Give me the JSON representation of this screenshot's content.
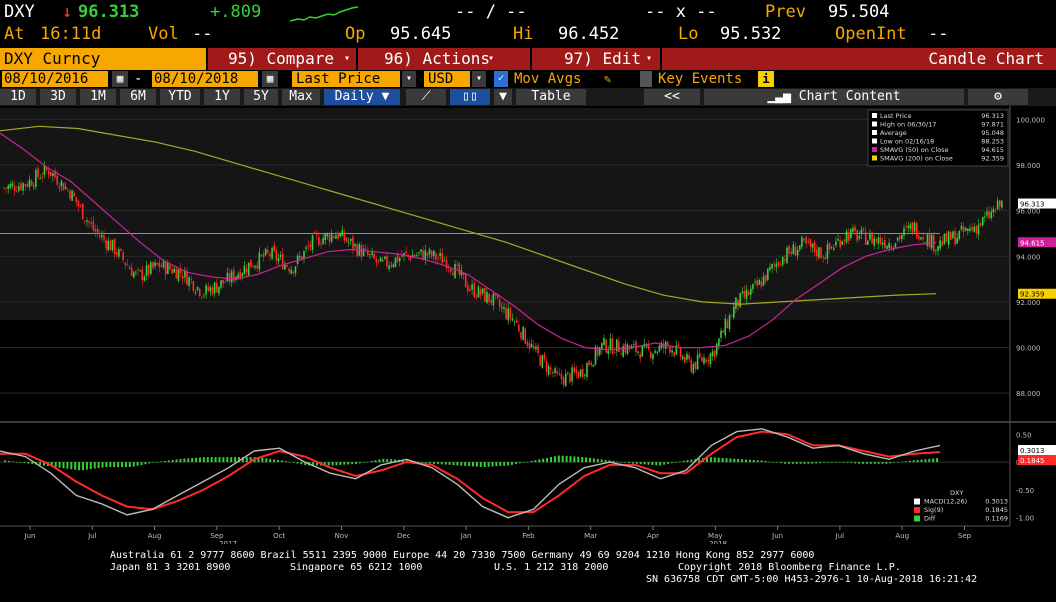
{
  "header": {
    "ticker": "DXY",
    "arrow": "↓",
    "last": "96.313",
    "change": "+.809",
    "dash1": "-- / --",
    "dash2": "-- x --",
    "prev_label": "Prev",
    "prev": "95.504",
    "at_label": "At",
    "time": "16:11d",
    "vol_label": "Vol",
    "vol": "--",
    "op_label": "Op",
    "op": "95.645",
    "hi_label": "Hi",
    "hi": "96.452",
    "lo_label": "Lo",
    "lo": "95.532",
    "openint_label": "OpenInt",
    "openint": "--"
  },
  "toolbar": {
    "security": "DXY Curncy",
    "compare": "95) Compare",
    "actions": "96) Actions",
    "edit": "97) Edit",
    "title": "Candle Chart"
  },
  "controls": {
    "start_date": "08/10/2016",
    "end_date": "08/10/2018",
    "field": "Last Price",
    "currency": "USD",
    "mov_avgs": "Mov Avgs",
    "key_events": "Key Events",
    "info_icon": "i"
  },
  "ranges": {
    "items": [
      "1D",
      "3D",
      "1M",
      "6M",
      "YTD",
      "1Y",
      "5Y",
      "Max"
    ],
    "period": "Daily",
    "table": "Table",
    "collapse": "<<",
    "chart_content": "Chart Content"
  },
  "colors": {
    "up_candle": "#36d136",
    "down_candle": "#ff2a2a",
    "sma50": "#cc2299",
    "sma200": "#a8a828",
    "accent": "#f7a800",
    "brand_bar": "#a01a1a"
  },
  "chart_data": [
    {
      "type": "candlestick",
      "title": "",
      "legend": [
        {
          "label": "Last Price",
          "value": "96.313"
        },
        {
          "label": "High on 06/30/17",
          "value": "97.871"
        },
        {
          "label": "Average",
          "value": "95.048"
        },
        {
          "label": "Low on 02/16/18",
          "value": "88.253"
        },
        {
          "label": "SMAVG (50) on Close",
          "value": "94.615"
        },
        {
          "label": "SMAVG (200) on Close",
          "value": "92.359"
        }
      ],
      "price_ticks": [
        "100.000",
        "98.000",
        "96.000",
        "94.000",
        "92.000",
        "90.000",
        "88.000"
      ],
      "ylim": [
        87,
        100.5
      ],
      "tags": [
        {
          "label": "96.313",
          "value": 96.313
        },
        {
          "label": "94.615",
          "value": 94.615
        },
        {
          "label": "92.359",
          "value": 92.359
        }
      ],
      "reference_line": 95.0,
      "x_labels": [
        "Jun",
        "Jul",
        "Aug",
        "Sep",
        "Oct",
        "Nov",
        "Dec",
        "Jan",
        "Feb",
        "Mar",
        "Apr",
        "May",
        "Jun",
        "Jul",
        "Aug",
        "Sep"
      ],
      "year_labels": [
        "2017",
        "2018"
      ],
      "close_path": [
        97.0,
        97.2,
        97.8,
        96.8,
        95.2,
        94.3,
        93.1,
        93.6,
        93.3,
        92.4,
        92.9,
        93.6,
        94.1,
        93.5,
        94.7,
        95.0,
        94.3,
        93.6,
        94.0,
        94.1,
        93.8,
        92.6,
        92.1,
        91.2,
        89.7,
        88.6,
        88.9,
        90.1,
        90.0,
        89.8,
        90.1,
        89.2,
        89.8,
        91.9,
        92.7,
        93.9,
        94.5,
        94.1,
        95.0,
        94.8,
        94.6,
        95.3,
        94.5,
        94.9,
        95.4,
        96.3
      ],
      "sma50_path": [
        99.4,
        98.7,
        97.9,
        97.3,
        96.4,
        95.5,
        94.6,
        93.8,
        93.3,
        93.1,
        93.0,
        93.2,
        93.6,
        93.9,
        94.2,
        94.3,
        94.2,
        94.1,
        93.9,
        93.6,
        93.2,
        92.5,
        91.8,
        91.0,
        90.4,
        90.0,
        89.9,
        90.0,
        90.2,
        90.0,
        90.0,
        90.1,
        90.5,
        91.2,
        92.1,
        92.8,
        93.5,
        94.0,
        94.3,
        94.5,
        94.6
      ],
      "sma200_path": [
        99.5,
        99.7,
        99.6,
        99.3,
        99.0,
        98.6,
        98.1,
        97.6,
        97.1,
        96.6,
        96.1,
        95.6,
        95.1,
        94.6,
        94.0,
        93.4,
        92.8,
        92.3,
        92.0,
        91.9,
        92.0,
        92.1,
        92.2,
        92.3,
        92.36
      ]
    },
    {
      "type": "line",
      "title": "",
      "legend": [
        {
          "label": "DXY",
          "value": ""
        },
        {
          "label": "MACD(12,26)",
          "value": "0.3013"
        },
        {
          "label": "Sig(9)",
          "value": "0.1845"
        },
        {
          "label": "Diff",
          "value": "0.1169"
        }
      ],
      "ticks": [
        "0.50",
        "0.00",
        "-0.50",
        "-1.00"
      ],
      "ylim": [
        -1.15,
        0.65
      ],
      "tags": [
        "0.3013",
        "0.1845"
      ],
      "macd_path": [
        0.2,
        0.1,
        -0.2,
        -0.6,
        -0.75,
        -0.95,
        -0.85,
        -0.6,
        -0.35,
        -0.1,
        0.2,
        0.25,
        0.0,
        -0.2,
        -0.3,
        -0.05,
        0.05,
        -0.1,
        -0.4,
        -0.8,
        -1.0,
        -0.85,
        -0.4,
        -0.1,
        0.0,
        -0.1,
        -0.3,
        -0.15,
        0.3,
        0.55,
        0.6,
        0.45,
        0.25,
        0.3,
        0.15,
        0.05,
        0.2,
        0.3
      ],
      "signal_path": [
        0.15,
        0.15,
        -0.05,
        -0.35,
        -0.6,
        -0.8,
        -0.85,
        -0.7,
        -0.5,
        -0.25,
        0.05,
        0.2,
        0.1,
        -0.1,
        -0.25,
        -0.15,
        0.0,
        -0.05,
        -0.3,
        -0.65,
        -0.9,
        -0.9,
        -0.6,
        -0.25,
        -0.05,
        -0.05,
        -0.2,
        -0.2,
        0.15,
        0.45,
        0.55,
        0.5,
        0.3,
        0.3,
        0.2,
        0.1,
        0.15,
        0.18
      ]
    }
  ],
  "footer": {
    "line1": "Australia 61 2 9777 8600 Brazil 5511 2395 9000 Europe 44 20 7330 7500 Germany 49 69 9204 1210 Hong Kong 852 2977 6000",
    "line2a": "Japan 81 3 3201 8900",
    "line2b": "Singapore 65 6212 1000",
    "line2c": "U.S. 1 212 318 2000",
    "line2d": "Copyright 2018 Bloomberg Finance L.P.",
    "line3": "SN 636758 CDT  GMT-5:00 H453-2976-1 10-Aug-2018 16:21:42"
  }
}
